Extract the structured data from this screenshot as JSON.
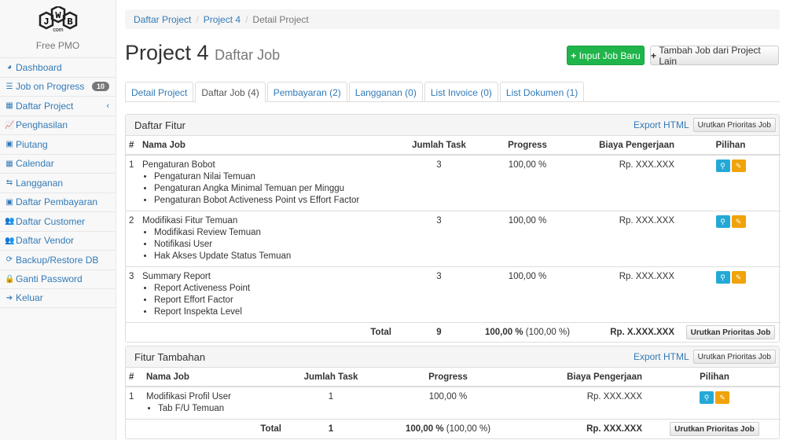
{
  "sidebar": {
    "logo_text": "JWB",
    "logo_sub": "com",
    "app_name": "Free PMO",
    "items": [
      {
        "label": "Dashboard",
        "icon": "dashboard-icon"
      },
      {
        "label": "Job on Progress",
        "icon": "tasks-icon",
        "badge": "10"
      },
      {
        "label": "Daftar Project",
        "icon": "table-icon"
      },
      {
        "label": "Penghasilan",
        "icon": "line-chart-icon"
      },
      {
        "label": "Piutang",
        "icon": "money-icon"
      },
      {
        "label": "Calendar",
        "icon": "calendar-icon"
      },
      {
        "label": "Langganan",
        "icon": "retweet-icon"
      },
      {
        "label": "Daftar Pembayaran",
        "icon": "money-icon"
      },
      {
        "label": "Daftar Customer",
        "icon": "users-icon"
      },
      {
        "label": "Daftar Vendor",
        "icon": "users-icon"
      },
      {
        "label": "Backup/Restore DB",
        "icon": "refresh-icon"
      },
      {
        "label": "Ganti Password",
        "icon": "lock-icon"
      },
      {
        "label": "Keluar",
        "icon": "sign-out-icon"
      }
    ]
  },
  "breadcrumb": [
    "Daftar Project",
    "Project 4",
    "Detail Project"
  ],
  "header": {
    "title": "Project 4",
    "subtitle": "Daftar Job",
    "btn_input": "Input Job Baru",
    "btn_tambah": "Tambah Job dari Project Lain"
  },
  "tabs": [
    "Detail Project",
    "Daftar Job (4)",
    "Pembayaran (2)",
    "Langganan (0)",
    "List Invoice (0)",
    "List Dokumen (1)"
  ],
  "fitur": {
    "title": "Daftar Fitur",
    "export": "Export HTML",
    "sort": "Urutkan Prioritas Job",
    "columns": [
      "#",
      "Nama Job",
      "Jumlah Task",
      "Progress",
      "Biaya Pengerjaan",
      "Pilihan"
    ],
    "rows": [
      {
        "no": "1",
        "name": "Pengaturan Bobot",
        "tasks": [
          "Pengaturan Nilai Temuan",
          "Pengaturan Angka Minimal Temuan per Minggu",
          "Pengaturan Bobot Activeness Point vs Effort Factor"
        ],
        "count": "3",
        "progress": "100,00 %",
        "biaya": "Rp. XXX.XXX"
      },
      {
        "no": "2",
        "name": "Modifikasi Fitur Temuan",
        "tasks": [
          "Modifikasi Review Temuan",
          "Notifikasi User",
          "Hak Akses Update Status Temuan"
        ],
        "count": "3",
        "progress": "100,00 %",
        "biaya": "Rp. XXX.XXX"
      },
      {
        "no": "3",
        "name": "Summary Report",
        "tasks": [
          "Report Activeness Point",
          "Report Effort Factor",
          "Report Inspekta Level"
        ],
        "count": "3",
        "progress": "100,00 %",
        "biaya": "Rp. XXX.XXX"
      }
    ],
    "total": {
      "label": "Total",
      "count": "9",
      "progress": "100,00 %",
      "progress_extra": "(100,00 %)",
      "biaya": "Rp. X.XXX.XXX"
    }
  },
  "tambahan": {
    "title": "Fitur Tambahan",
    "export": "Export HTML",
    "sort": "Urutkan Prioritas Job",
    "columns": [
      "#",
      "Nama Job",
      "Jumlah Task",
      "Progress",
      "Biaya Pengerjaan",
      "Pilihan"
    ],
    "rows": [
      {
        "no": "1",
        "name": "Modifikasi Profil User",
        "tasks": [
          "Tab F/U Temuan"
        ],
        "count": "1",
        "progress": "100,00 %",
        "biaya": "Rp. XXX.XXX"
      }
    ],
    "total": {
      "label": "Total",
      "count": "1",
      "progress": "100,00 %",
      "progress_extra": "(100,00 %)",
      "biaya": "Rp. XXX.XXX"
    }
  }
}
